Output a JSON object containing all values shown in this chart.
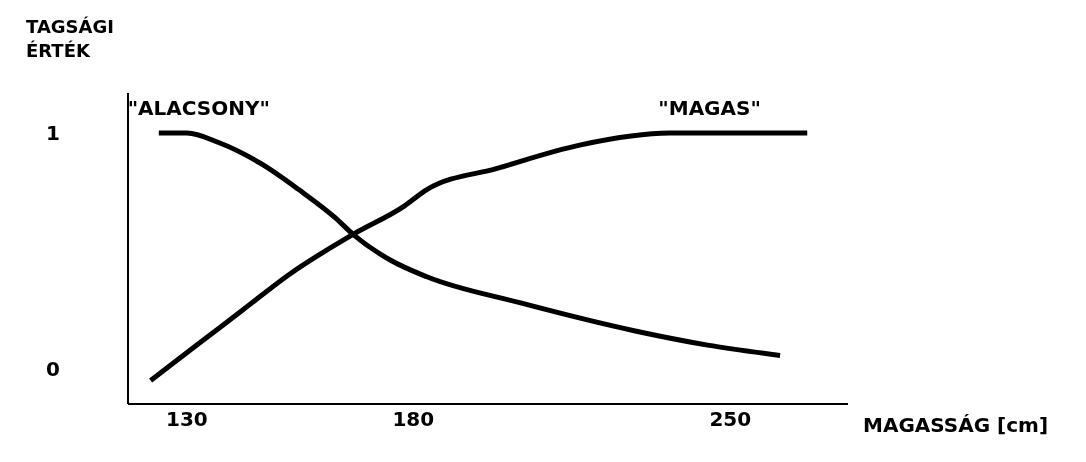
{
  "chart_data": {
    "type": "line",
    "xlabel": "MAGASSÁG [cm]",
    "ylabel": "TAGSÁGI ÉRTÉK",
    "xlim": [
      117,
      276
    ],
    "ylim": [
      -0.15,
      1.17
    ],
    "xticks": [
      130,
      180,
      250
    ],
    "yticks": [
      0,
      1
    ],
    "grid": false,
    "legend": false,
    "marker": "none",
    "line_style": "solid",
    "series": [
      {
        "name": "\"ALACSONY\"",
        "color": "#000000",
        "x": [
          123.8,
          130,
          137,
          146.4,
          154.7,
          162.8,
          166.7,
          175,
          183,
          203.5,
          229,
          245,
          261
        ],
        "values": [
          1.0,
          1.0,
          0.96,
          0.87,
          0.76,
          0.64,
          0.57,
          0.46,
          0.39,
          0.28,
          0.16,
          0.1,
          0.056
        ]
      },
      {
        "name": "\"MAGAS\"",
        "color": "#000000",
        "x": [
          122,
          132.2,
          142.4,
          152.6,
          166.7,
          178,
          183,
          198.5,
          217,
          236.6,
          267
        ],
        "values": [
          -0.05,
          0.1,
          0.25,
          0.4,
          0.57,
          0.69,
          0.76,
          0.85,
          0.95,
          1.0,
          1.0
        ]
      }
    ]
  }
}
